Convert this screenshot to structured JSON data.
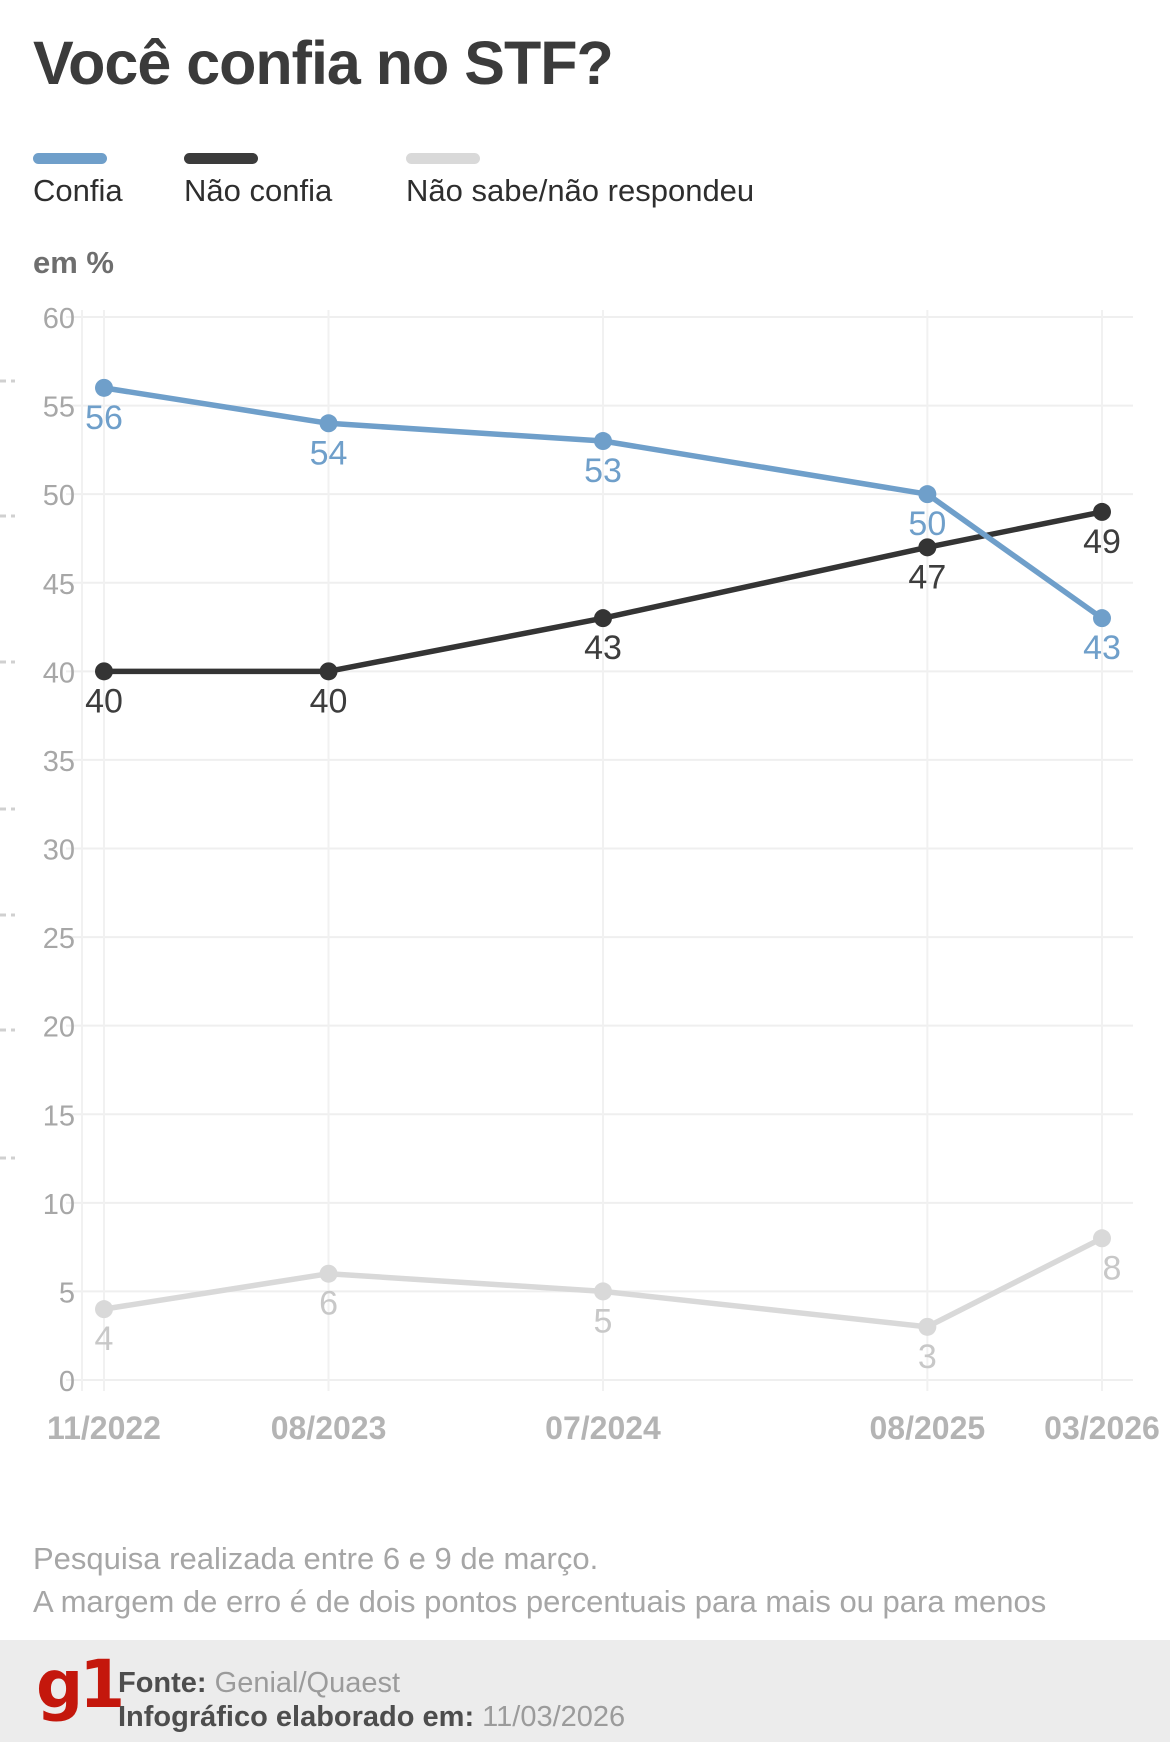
{
  "title": "Você confia no STF?",
  "unit_label": "em %",
  "legend": [
    {
      "label": "Confia",
      "color": "#6f9fca"
    },
    {
      "label": "Não confia",
      "color": "#3b3b3b"
    },
    {
      "label": "Não sabe/não respondeu",
      "color": "#d9d9d9"
    }
  ],
  "chart_data": {
    "type": "line",
    "title": "Você confia no STF?",
    "ylabel": "em %",
    "categories": [
      "11/2022",
      "08/2023",
      "07/2024",
      "08/2025",
      "03/2026"
    ],
    "x_months": [
      0,
      9,
      20,
      33,
      40
    ],
    "series": [
      {
        "name": "Confia",
        "color": "#6f9fca",
        "label_color": "#6f9fca",
        "values": [
          56,
          54,
          53,
          50,
          43
        ]
      },
      {
        "name": "Não confia",
        "color": "#343434",
        "label_color": "#3d3d3d",
        "values": [
          40,
          40,
          43,
          47,
          49
        ]
      },
      {
        "name": "Não sabe/não respondeu",
        "color": "#d9d9d9",
        "label_color": "#c8c8c8",
        "values": [
          4,
          6,
          5,
          3,
          8
        ],
        "label_dx": [
          0,
          0,
          0,
          0,
          10
        ]
      }
    ],
    "ylim": [
      0,
      60
    ],
    "ytick_step": 5,
    "grid": true,
    "legend_position": "top"
  },
  "notes": [
    "Pesquisa realizada entre 6 e 9 de março.",
    "A margem de erro é de dois pontos percentuais para mais ou para menos"
  ],
  "footer": {
    "logo": "g1",
    "logo_color": "#c4170c",
    "source_label": "Fonte:",
    "source_value": "Genial/Quaest",
    "elaborated_label": "Infográfico elaborado em:",
    "elaborated_value": "11/03/2026"
  }
}
